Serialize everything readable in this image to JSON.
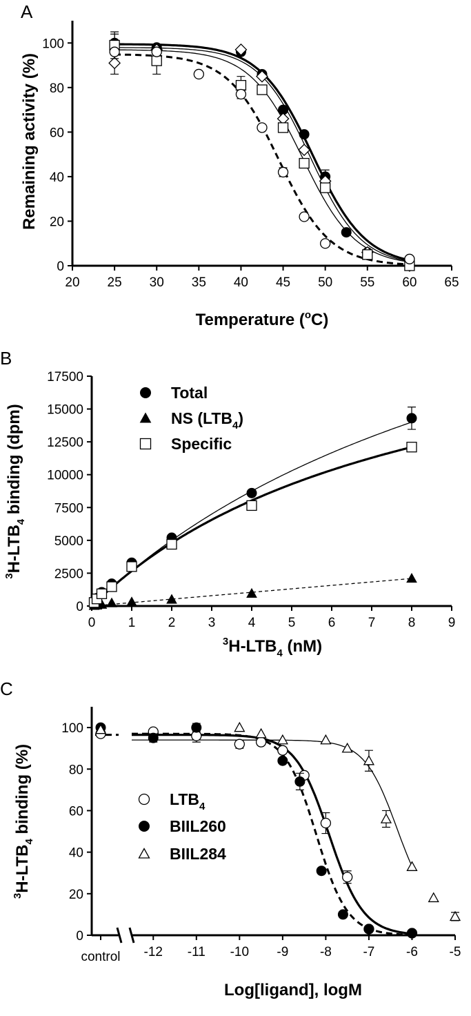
{
  "chart_data": [
    {
      "panel": "A",
      "type": "scatter",
      "xlabel": "Temperature (",
      "xlabel_sup": "o",
      "xlabel_tail": "C)",
      "ylabel": "Remaining activity (%)",
      "xlim": [
        20,
        65
      ],
      "ylim": [
        0,
        110
      ],
      "xticks": [
        "20",
        "25",
        "30",
        "35",
        "40",
        "45",
        "50",
        "55",
        "60",
        "65"
      ],
      "yticks": [
        "0",
        "20",
        "40",
        "60",
        "80",
        "100"
      ],
      "series": [
        {
          "marker": "filled-circle",
          "points": [
            [
              25,
              100
            ],
            [
              30,
              98
            ],
            [
              40,
              96
            ],
            [
              42.5,
              86
            ],
            [
              45,
              70
            ],
            [
              47.5,
              59
            ],
            [
              50,
              40
            ],
            [
              52.5,
              15
            ],
            [
              55,
              6
            ],
            [
              60,
              0
            ]
          ],
          "errors": [
            4,
            0,
            0,
            0,
            0,
            0,
            3,
            0,
            0,
            0
          ],
          "curve": {
            "style": "solid-thick",
            "top": 99.5,
            "bottom": 0,
            "t50": 48.5,
            "slope": 2.9
          }
        },
        {
          "marker": "open-diamond",
          "points": [
            [
              25,
              91
            ],
            [
              30,
              97
            ],
            [
              40,
              97
            ],
            [
              42.5,
              85
            ],
            [
              45,
              66
            ],
            [
              47.5,
              52
            ],
            [
              50,
              38
            ],
            [
              55,
              6
            ],
            [
              60,
              0
            ]
          ],
          "errors": [
            5,
            0,
            0,
            0,
            0,
            0,
            0,
            0,
            0
          ],
          "curve": {
            "style": "solid-thin",
            "top": 98,
            "bottom": 0,
            "t50": 48.2,
            "slope": 2.8
          }
        },
        {
          "marker": "open-square",
          "points": [
            [
              25,
              99
            ],
            [
              30,
              92
            ],
            [
              40,
              81
            ],
            [
              42.5,
              79
            ],
            [
              45,
              62
            ],
            [
              47.5,
              46
            ],
            [
              50,
              35
            ],
            [
              55,
              5
            ],
            [
              60,
              0
            ]
          ],
          "errors": [
            6,
            6,
            4,
            0,
            0,
            0,
            0,
            0,
            0
          ],
          "curve": {
            "style": "solid-thin",
            "top": 97,
            "bottom": 0,
            "t50": 47.3,
            "slope": 2.9
          }
        },
        {
          "marker": "open-circle",
          "points": [
            [
              25,
              96
            ],
            [
              30,
              96
            ],
            [
              35,
              86
            ],
            [
              40,
              77
            ],
            [
              42.5,
              62
            ],
            [
              45,
              42
            ],
            [
              47.5,
              22
            ],
            [
              50,
              10
            ],
            [
              60,
              3
            ]
          ],
          "errors": [
            0,
            0,
            0,
            2,
            0,
            2,
            0,
            0,
            0
          ],
          "curve": {
            "style": "dashed-thick",
            "top": 95,
            "bottom": 0,
            "t50": 44.5,
            "slope": 2.8
          }
        }
      ]
    },
    {
      "panel": "B",
      "type": "scatter",
      "xlabel_pre": "3",
      "xlabel": "H-LTB",
      "xlabel_sub": "4",
      "xlabel_tail": " (nM)",
      "ylabel_pre": "3",
      "ylabel": "H-LTB",
      "ylabel_sub": "4",
      "ylabel_tail": " binding (dpm)",
      "xlim": [
        0,
        9
      ],
      "ylim": [
        0,
        17500
      ],
      "xticks": [
        "0",
        "1",
        "2",
        "3",
        "4",
        "5",
        "6",
        "7",
        "8",
        "9"
      ],
      "yticks": [
        "0",
        "2500",
        "5000",
        "7500",
        "10000",
        "12500",
        "15000",
        "17500"
      ],
      "legend": [
        {
          "marker": "filled-circle",
          "label": "Total"
        },
        {
          "marker": "filled-triangle",
          "label": "NS (LTB",
          "sub": "4",
          "tail": ")"
        },
        {
          "marker": "open-square",
          "label": "Specific"
        }
      ],
      "series": [
        {
          "name": "Total",
          "marker": "filled-circle",
          "points": [
            [
              0.06,
              300
            ],
            [
              0.13,
              600
            ],
            [
              0.25,
              1050
            ],
            [
              0.5,
              1700
            ],
            [
              1,
              3300
            ],
            [
              2,
              5200
            ],
            [
              4,
              8600
            ],
            [
              8,
              14300
            ]
          ],
          "errors": [
            0,
            0,
            0,
            0,
            0,
            0,
            0,
            850
          ],
          "curve": {
            "style": "solid-thin",
            "fn": "sat",
            "bmax": 35000,
            "kd": 12
          }
        },
        {
          "name": "NS (LTB4)",
          "marker": "filled-triangle",
          "points": [
            [
              0.06,
              30
            ],
            [
              0.13,
              60
            ],
            [
              0.25,
              120
            ],
            [
              0.5,
              230
            ],
            [
              1,
              300
            ],
            [
              2,
              500
            ],
            [
              4,
              950
            ],
            [
              8,
              2100
            ]
          ],
          "errors": [
            0,
            0,
            0,
            0,
            0,
            0,
            0,
            0
          ],
          "curve": {
            "style": "dashed-thin",
            "fn": "lin",
            "slope": 262
          }
        },
        {
          "name": "Specific",
          "marker": "open-square",
          "points": [
            [
              0.06,
              270
            ],
            [
              0.13,
              540
            ],
            [
              0.25,
              930
            ],
            [
              0.5,
              1470
            ],
            [
              1,
              3000
            ],
            [
              2,
              4700
            ],
            [
              4,
              7650
            ],
            [
              8,
              12100
            ]
          ],
          "errors": [
            0,
            0,
            0,
            0,
            0,
            0,
            0,
            0
          ],
          "curve": {
            "style": "solid-thick",
            "fn": "sat",
            "bmax": 24500,
            "kd": 8.2
          }
        }
      ]
    },
    {
      "panel": "C",
      "type": "scatter",
      "xlabel": "Log[ligand], logM",
      "ylabel_pre": "3",
      "ylabel": "H-LTB",
      "ylabel_sub": "4",
      "ylabel_tail": " binding (%)",
      "control_label": "control",
      "xlim": [
        -12.5,
        -5
      ],
      "ylim": [
        0,
        110
      ],
      "xticks": [
        "-12",
        "-11",
        "-10",
        "-9",
        "-8",
        "-7",
        "-6",
        "-5"
      ],
      "yticks": [
        "0",
        "20",
        "40",
        "60",
        "80",
        "100"
      ],
      "legend": [
        {
          "marker": "open-circle",
          "label": "LTB",
          "sub": "4"
        },
        {
          "marker": "filled-circle",
          "label": "BIIL260"
        },
        {
          "marker": "open-triangle",
          "label": "BIIL284"
        }
      ],
      "series": [
        {
          "name": "LTB4",
          "marker": "open-circle",
          "control": 97,
          "points": [
            [
              -12,
              98
            ],
            [
              -11,
              96
            ],
            [
              -10,
              92
            ],
            [
              -9.5,
              93
            ],
            [
              -9,
              89
            ],
            [
              -8.5,
              77
            ],
            [
              -8,
              54
            ],
            [
              -7.5,
              28
            ],
            [
              -7,
              3
            ],
            [
              -6,
              1
            ]
          ],
          "errors": [
            0,
            3,
            2,
            0,
            0,
            0,
            5,
            3,
            0,
            0
          ],
          "curve": {
            "style": "solid-thick",
            "top": 96.5,
            "bottom": 0,
            "logic50": -7.92,
            "hill": 1.1
          }
        },
        {
          "name": "BIIL260",
          "marker": "filled-circle",
          "control": 100,
          "points": [
            [
              -12,
              95
            ],
            [
              -11,
              100
            ],
            [
              -9,
              84
            ],
            [
              -8.6,
              74
            ],
            [
              -8.1,
              31
            ],
            [
              -7.6,
              10
            ],
            [
              -7,
              3
            ],
            [
              -6,
              1
            ]
          ],
          "errors": [
            2,
            2,
            0,
            4,
            0,
            0,
            0,
            0
          ],
          "curve": {
            "style": "dashed-thick",
            "top": 97,
            "bottom": 0,
            "logic50": -8.22,
            "hill": 1.2
          }
        },
        {
          "name": "BIIL284",
          "marker": "open-triangle",
          "control": 99,
          "points": [
            [
              -10,
              100
            ],
            [
              -9.5,
              97
            ],
            [
              -9,
              94
            ],
            [
              -8,
              94
            ],
            [
              -7.5,
              90
            ],
            [
              -7,
              84
            ],
            [
              -6.6,
              56
            ],
            [
              -6,
              33
            ],
            [
              -5.5,
              18
            ],
            [
              -5,
              9
            ]
          ],
          "errors": [
            0,
            0,
            0,
            0,
            0,
            5,
            4,
            0,
            0,
            2
          ],
          "curve": {
            "style": "solid-thin",
            "top": 94,
            "bottom": 9,
            "logic50": -6.35,
            "hill": 1.15
          }
        }
      ]
    }
  ],
  "panels": {
    "a": "A",
    "b": "B",
    "c": "C"
  }
}
